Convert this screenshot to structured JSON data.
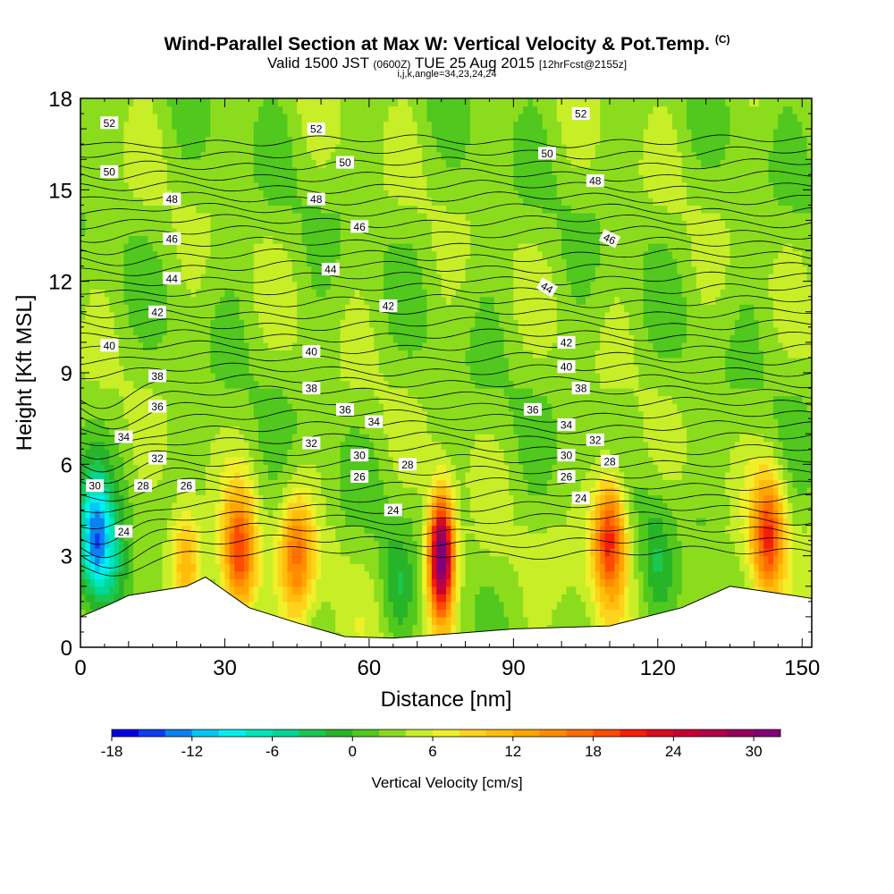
{
  "header": {
    "title": "Wind-Parallel Section at Max W: Vertical Velocity & Pot.Temp.",
    "title_mark": "(C)",
    "subtitle_valid": "Valid 1500 JST",
    "subtitle_utc": "(0600Z)",
    "subtitle_date": "TUE 25 Aug 2015",
    "subtitle_fcst": "[12hrFcst@2155z]",
    "params": "i,j,k,angle=34,23,24,24"
  },
  "chart_data": {
    "type": "heatmap",
    "title": "Wind-Parallel Section at Max W: Vertical Velocity & Pot.Temp.",
    "xlabel": "Distance [nm]",
    "ylabel": "Height [Kft MSL]",
    "xlim": [
      0,
      152
    ],
    "ylim": [
      0,
      18
    ],
    "x_ticks": [
      0,
      30,
      60,
      90,
      120,
      150
    ],
    "y_ticks": [
      0,
      3,
      6,
      9,
      12,
      15,
      18
    ],
    "x_tick_labels": [
      "0",
      "30",
      "60",
      "90",
      "120",
      "150"
    ],
    "y_tick_labels": [
      "0",
      "3",
      "6",
      "9",
      "12",
      "15",
      "18"
    ],
    "colorbar": {
      "label": "Vertical Velocity [cm/s]",
      "min": -18,
      "max": 32,
      "step": 2,
      "tick_values": [
        -18,
        -12,
        -6,
        0,
        6,
        12,
        18,
        24,
        30
      ],
      "tick_labels": [
        "-18",
        "-12",
        "-6",
        "0",
        "6",
        "12",
        "18",
        "24",
        "30"
      ],
      "colors": [
        "#0000e6",
        "#0d3cf0",
        "#0a82f0",
        "#00c8f0",
        "#00f0f0",
        "#00e6bc",
        "#00d896",
        "#1ac850",
        "#28b428",
        "#50c81e",
        "#8cdc1e",
        "#c8ee28",
        "#f0f028",
        "#ffd21e",
        "#ffbe0a",
        "#ffa500",
        "#ff8c00",
        "#ff6e00",
        "#ff4a00",
        "#f51e0a",
        "#dc0a1e",
        "#c80032",
        "#b4004b",
        "#96005f",
        "#820078"
      ]
    },
    "velocity_cores": [
      {
        "x": 3,
        "z": 3.5,
        "w": -16
      },
      {
        "x": 7,
        "z": 2.4,
        "w": -6
      },
      {
        "x": 22,
        "z": 2.8,
        "w": 9
      },
      {
        "x": 33,
        "z": 3.0,
        "w": 16
      },
      {
        "x": 45,
        "z": 3.0,
        "w": 12
      },
      {
        "x": 66,
        "z": 2.2,
        "w": -5
      },
      {
        "x": 75,
        "z": 3.0,
        "w": 30
      },
      {
        "x": 110,
        "z": 3.6,
        "w": 18
      },
      {
        "x": 120,
        "z": 3.0,
        "w": -5
      },
      {
        "x": 143,
        "z": 3.6,
        "w": 16
      }
    ],
    "terrain": [
      {
        "x": 0,
        "z": 1.0
      },
      {
        "x": 6,
        "z": 1.4
      },
      {
        "x": 10,
        "z": 1.7
      },
      {
        "x": 22,
        "z": 2.0
      },
      {
        "x": 26,
        "z": 2.3
      },
      {
        "x": 35,
        "z": 1.3
      },
      {
        "x": 45,
        "z": 0.8
      },
      {
        "x": 55,
        "z": 0.35
      },
      {
        "x": 65,
        "z": 0.3
      },
      {
        "x": 90,
        "z": 0.6
      },
      {
        "x": 110,
        "z": 0.7
      },
      {
        "x": 125,
        "z": 1.3
      },
      {
        "x": 135,
        "z": 2.0
      },
      {
        "x": 148,
        "z": 1.7
      },
      {
        "x": 152,
        "z": 1.6
      }
    ],
    "theta_labels": [
      {
        "text": "52",
        "x": 6,
        "z": 17.2
      },
      {
        "text": "52",
        "x": 49,
        "z": 17.0
      },
      {
        "text": "52",
        "x": 104,
        "z": 17.5
      },
      {
        "text": "50",
        "x": 6,
        "z": 15.6
      },
      {
        "text": "50",
        "x": 55,
        "z": 15.9
      },
      {
        "text": "50",
        "x": 97,
        "z": 16.2
      },
      {
        "text": "48",
        "x": 19,
        "z": 14.7
      },
      {
        "text": "48",
        "x": 49,
        "z": 14.7
      },
      {
        "text": "48",
        "x": 107,
        "z": 15.3
      },
      {
        "text": "46",
        "x": 19,
        "z": 13.4
      },
      {
        "text": "46",
        "x": 58,
        "z": 13.8
      },
      {
        "text": "46",
        "x": 110,
        "z": 13.4,
        "rot": 25
      },
      {
        "text": "44",
        "x": 19,
        "z": 12.1
      },
      {
        "text": "44",
        "x": 52,
        "z": 12.4
      },
      {
        "text": "44",
        "x": 97,
        "z": 11.8,
        "rot": 30
      },
      {
        "text": "42",
        "x": 16,
        "z": 11.0
      },
      {
        "text": "42",
        "x": 64,
        "z": 11.2
      },
      {
        "text": "42",
        "x": 101,
        "z": 10.0
      },
      {
        "text": "40",
        "x": 6,
        "z": 9.9
      },
      {
        "text": "40",
        "x": 48,
        "z": 9.7
      },
      {
        "text": "40",
        "x": 101,
        "z": 9.2
      },
      {
        "text": "38",
        "x": 16,
        "z": 8.9
      },
      {
        "text": "38",
        "x": 48,
        "z": 8.5
      },
      {
        "text": "38",
        "x": 104,
        "z": 8.5
      },
      {
        "text": "36",
        "x": 16,
        "z": 7.9
      },
      {
        "text": "36",
        "x": 55,
        "z": 7.8
      },
      {
        "text": "36",
        "x": 94,
        "z": 7.8
      },
      {
        "text": "34",
        "x": 9,
        "z": 6.9
      },
      {
        "text": "34",
        "x": 61,
        "z": 7.4
      },
      {
        "text": "34",
        "x": 101,
        "z": 7.3
      },
      {
        "text": "32",
        "x": 16,
        "z": 6.2
      },
      {
        "text": "32",
        "x": 48,
        "z": 6.7
      },
      {
        "text": "32",
        "x": 107,
        "z": 6.8
      },
      {
        "text": "30",
        "x": 3,
        "z": 5.3
      },
      {
        "text": "30",
        "x": 58,
        "z": 6.3
      },
      {
        "text": "30",
        "x": 101,
        "z": 6.3
      },
      {
        "text": "28",
        "x": 13,
        "z": 5.3
      },
      {
        "text": "28",
        "x": 68,
        "z": 6.0
      },
      {
        "text": "28",
        "x": 110,
        "z": 6.1
      },
      {
        "text": "26",
        "x": 22,
        "z": 5.3
      },
      {
        "text": "26",
        "x": 58,
        "z": 5.6
      },
      {
        "text": "26",
        "x": 101,
        "z": 5.6
      },
      {
        "text": "24",
        "x": 9,
        "z": 3.8
      },
      {
        "text": "24",
        "x": 65,
        "z": 4.5
      },
      {
        "text": "24",
        "x": 104,
        "z": 4.9
      }
    ]
  }
}
